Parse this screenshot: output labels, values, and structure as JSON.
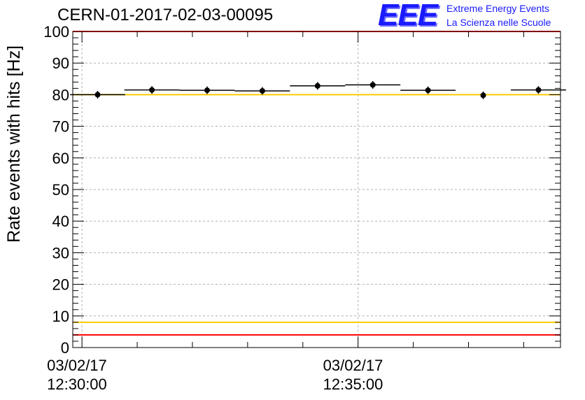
{
  "title": "CERN-01-2017-02-03-00095",
  "logo": {
    "mark": "EEE",
    "line1": "Extreme Energy Events",
    "line2": "La Scienza nelle Scuole",
    "color": "#1a1aff"
  },
  "chart_data": {
    "type": "scatter",
    "ylabel": "Rate events with hits [Hz]",
    "xlabel": "",
    "ylim": [
      0,
      100
    ],
    "yticks": [
      0,
      10,
      20,
      30,
      40,
      50,
      60,
      70,
      80,
      90,
      100
    ],
    "xlim_seconds_from_1230": [
      -10,
      520
    ],
    "xticks": [
      {
        "seconds_from_1230": 0,
        "date": "03/02/17",
        "time": "12:30:00"
      },
      {
        "seconds_from_1230": 300,
        "date": "03/02/17",
        "time": "12:35:00"
      }
    ],
    "grid": true,
    "series": [
      {
        "marker": "filled-circle",
        "color": "#000000",
        "points": [
          {
            "t": 17,
            "half_width": 30,
            "y": 80.0,
            "yerr": 1.2
          },
          {
            "t": 76,
            "half_width": 30,
            "y": 81.5,
            "yerr": 1.2
          },
          {
            "t": 136,
            "half_width": 30,
            "y": 81.4,
            "yerr": 1.2
          },
          {
            "t": 196,
            "half_width": 30,
            "y": 81.2,
            "yerr": 1.2
          },
          {
            "t": 256,
            "half_width": 30,
            "y": 82.8,
            "yerr": 1.2
          },
          {
            "t": 316,
            "half_width": 30,
            "y": 83.1,
            "yerr": 1.2
          },
          {
            "t": 376,
            "half_width": 30,
            "y": 81.4,
            "yerr": 1.2
          },
          {
            "t": 436,
            "half_width": 0,
            "y": 79.8,
            "yerr": 1.2
          },
          {
            "t": 496,
            "half_width": 30,
            "y": 81.5,
            "yerr": 1.2
          }
        ]
      }
    ],
    "reference_lines": [
      {
        "y": 100,
        "color": "#ff0000"
      },
      {
        "y": 80,
        "color": "#ffcc00"
      },
      {
        "y": 8,
        "color": "#ffcc00"
      },
      {
        "y": 4,
        "color": "#ff0000"
      }
    ]
  }
}
